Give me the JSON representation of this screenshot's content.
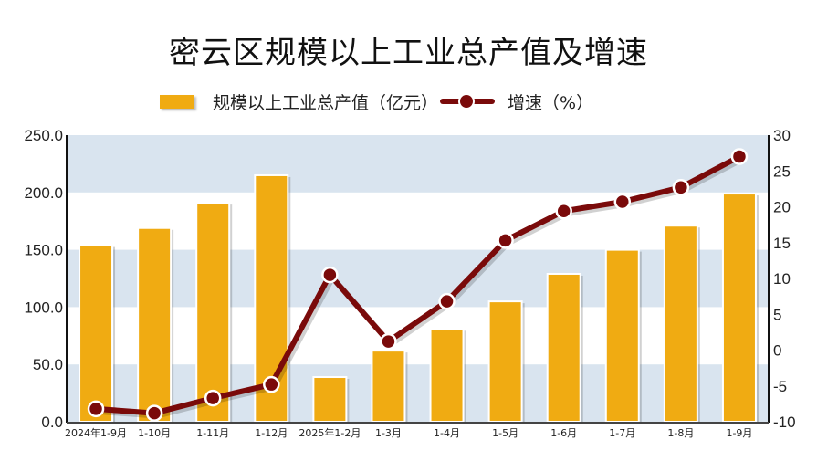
{
  "header": {
    "title": "密云区规模以上工业总产值及增速"
  },
  "legend": {
    "bar_label": "规模以上工业总产值（亿元）",
    "line_label": "增速（%）"
  },
  "colors": {
    "bar": "#f0ab12",
    "line": "#7a0a0a",
    "band": "#d9e4ef",
    "axis": "#111111"
  },
  "chart_data": {
    "type": "bar+line",
    "title": "密云区规模以上工业总产值及增速",
    "categories": [
      "2024年1-9月",
      "1-10月",
      "1-11月",
      "1-12月",
      "2025年1-2月",
      "1-3月",
      "1-4月",
      "1-5月",
      "1-6月",
      "1-7月",
      "1-8月",
      "1-9月"
    ],
    "series": [
      {
        "name": "规模以上工业总产值（亿元）",
        "type": "bar",
        "axis": "left",
        "values": [
          154.0,
          169.0,
          191.0,
          215.0,
          39.0,
          62.0,
          81.0,
          105.0,
          129.0,
          150.0,
          171.0,
          199.0
        ]
      },
      {
        "name": "增速（%）",
        "type": "line",
        "axis": "right",
        "values": [
          -8.2,
          -8.8,
          -6.7,
          -4.8,
          10.5,
          1.2,
          6.8,
          15.3,
          19.4,
          20.7,
          22.7,
          27.0
        ]
      }
    ],
    "xlabel": "",
    "ylabel_left": "",
    "ylabel_right": "",
    "ylim_left": [
      0,
      250
    ],
    "ylim_right": [
      -10,
      30
    ],
    "yticks_left": [
      "0.0",
      "50.0",
      "100.0",
      "150.0",
      "200.0",
      "250.0"
    ],
    "yticks_right": [
      "-10",
      "-5",
      "0",
      "5",
      "10",
      "15",
      "20",
      "25",
      "30"
    ],
    "grid": "alternating horizontal bands",
    "legend_position": "top"
  }
}
